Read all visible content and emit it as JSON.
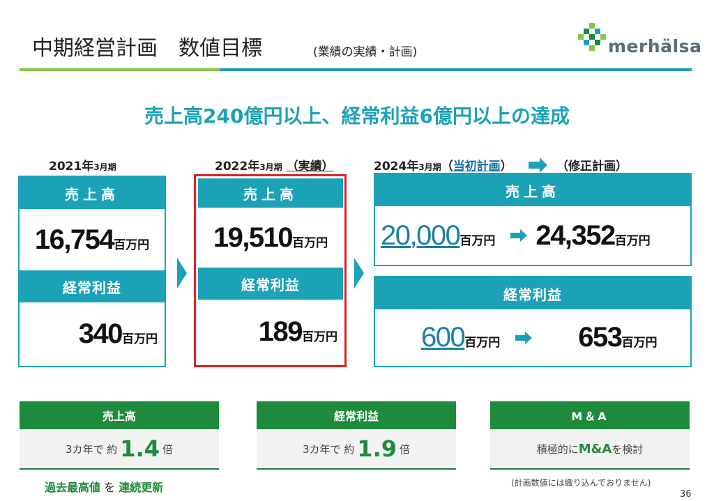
{
  "header": {
    "title": "中期経営計画　数値目標",
    "subtitle": "(業績の実績・計画)",
    "logo_text": "merhälsa",
    "headline": "売上高240億円以上、経常利益6億円以上の達成"
  },
  "periods": {
    "fy2021": {
      "year": "2021年",
      "month": "3月期"
    },
    "fy2022": {
      "year": "2022年",
      "month": "3月期",
      "tag": "（実績）"
    },
    "fy2024": {
      "year": "2024年",
      "month": "3月期",
      "tag_open": "（",
      "tag_link": "当初計画",
      "tag_close": "）",
      "revised": "（修正計画）"
    }
  },
  "labels": {
    "sales": "売上高",
    "ordinary_profit": "経常利益",
    "unit": "百万円"
  },
  "values": {
    "fy2021": {
      "sales": "16,754",
      "ordinary_profit": "340"
    },
    "fy2022": {
      "sales": "19,510",
      "ordinary_profit": "189"
    },
    "fy2024": {
      "sales_initial": "20,000",
      "sales_revised": "24,352",
      "profit_initial": "600",
      "profit_revised": "653"
    }
  },
  "summary": [
    {
      "head": "売上高",
      "pre": "3カ年で 約",
      "num": "1.4",
      "post": "倍"
    },
    {
      "head": "経常利益",
      "pre": "3カ年で 約",
      "num": "1.9",
      "post": "倍"
    },
    {
      "head": "M＆A",
      "pre": "積極的に",
      "em": "M&A",
      "post": "を検討"
    }
  ],
  "record": {
    "a": "過去最高値",
    "b": " を ",
    "c": "連続更新"
  },
  "note": "(計画数値には織り込んでおりません)",
  "page_number": "36",
  "colors": {
    "teal": "#1ba2b6",
    "green": "#1e8a3c",
    "lime": "#8bc34a",
    "red": "#e02020"
  }
}
